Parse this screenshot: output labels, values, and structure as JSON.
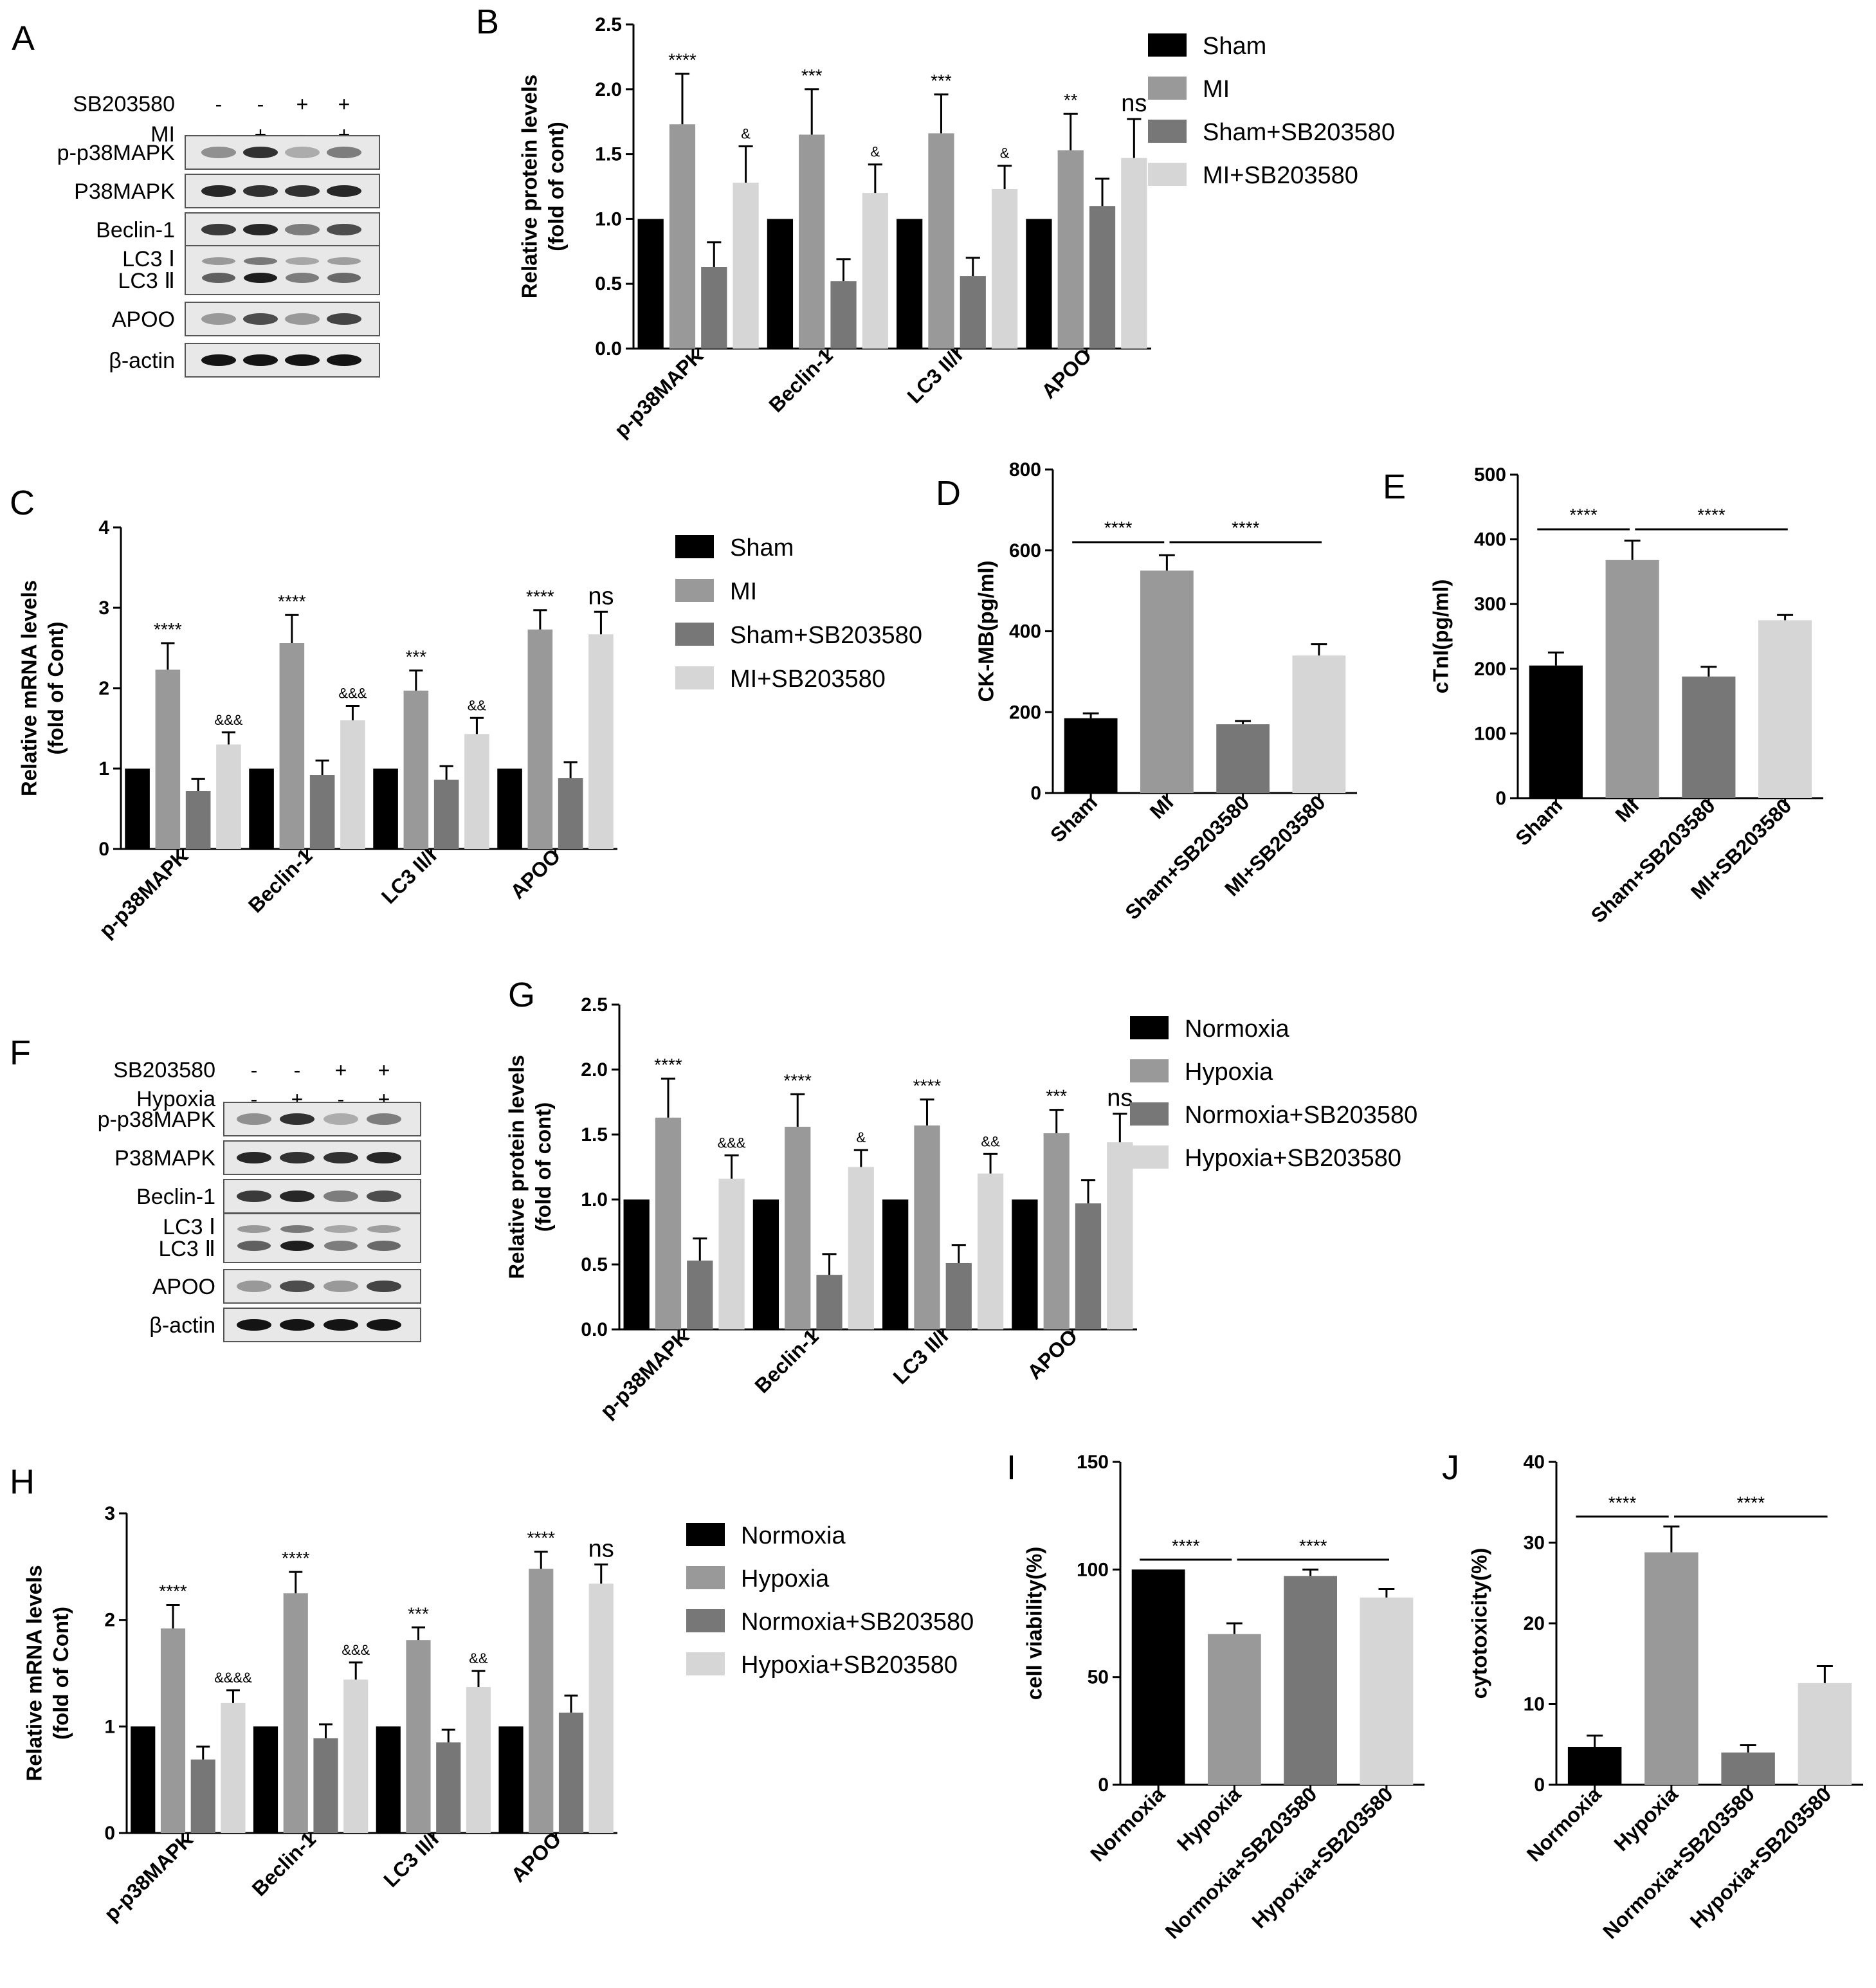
{
  "figure": {
    "panel_letters": [
      "A",
      "B",
      "C",
      "D",
      "E",
      "F",
      "G",
      "H",
      "I",
      "J"
    ]
  },
  "colors": {
    "c1": "#000000",
    "c2": "#999999",
    "c3": "#777777",
    "c4": "#d6d6d6",
    "error_bar": "#000000"
  },
  "blots": [
    {
      "letter": "A",
      "treatments": [
        {
          "label": "SB203580",
          "signs": [
            "-",
            "-",
            "+",
            "+"
          ]
        },
        {
          "label": "MI",
          "signs": [
            "-",
            "+",
            "-",
            "+"
          ]
        }
      ],
      "rows": [
        {
          "label": "p-p38MAPK"
        },
        {
          "label": "P38MAPK"
        },
        {
          "label": "Beclin-1"
        },
        {
          "label": "LC3 Ⅰ",
          "label2": "LC3 Ⅱ"
        },
        {
          "label": "APOO"
        },
        {
          "label": "β-actin"
        }
      ]
    },
    {
      "letter": "F",
      "treatments": [
        {
          "label": "SB203580",
          "signs": [
            "-",
            "-",
            "+",
            "+"
          ]
        },
        {
          "label": "Hypoxia",
          "signs": [
            "-",
            "+",
            "-",
            "+"
          ]
        }
      ],
      "rows": [
        {
          "label": "p-p38MAPK"
        },
        {
          "label": "P38MAPK"
        },
        {
          "label": "Beclin-1"
        },
        {
          "label": "LC3 Ⅰ",
          "label2": "LC3 Ⅱ"
        },
        {
          "label": "APOO"
        },
        {
          "label": "β-actin"
        }
      ]
    }
  ],
  "chart_data": [
    {
      "letter": "B",
      "type": "bar",
      "ylabel": "Relative protein levels\n(fold of cont)",
      "ylim": [
        0,
        2.5
      ],
      "yticks": [
        "0.0",
        "0.5",
        "1.0",
        "1.5",
        "2.0",
        "2.5"
      ],
      "categories": [
        "p-p38MAPK",
        "Beclin-1",
        "LC3 II/I",
        "APOO"
      ],
      "legend": [
        "Sham",
        "MI",
        "Sham+SB203580",
        "MI+SB203580"
      ],
      "series": [
        {
          "name": "Sham",
          "values": [
            1.0,
            1.0,
            1.0,
            1.0
          ],
          "errors": [
            0,
            0,
            0,
            0
          ],
          "labels": [
            "",
            "",
            "",
            ""
          ]
        },
        {
          "name": "MI",
          "values": [
            1.73,
            1.65,
            1.66,
            1.53
          ],
          "errors": [
            0.39,
            0.35,
            0.3,
            0.28
          ],
          "labels": [
            "****",
            "***",
            "***",
            "**"
          ]
        },
        {
          "name": "Sham+SB203580",
          "values": [
            0.63,
            0.52,
            0.56,
            1.1
          ],
          "errors": [
            0.19,
            0.17,
            0.14,
            0.21
          ],
          "labels": [
            "",
            "",
            "",
            ""
          ]
        },
        {
          "name": "MI+SB203580",
          "values": [
            1.28,
            1.2,
            1.23,
            1.47
          ],
          "errors": [
            0.28,
            0.22,
            0.18,
            0.3
          ],
          "labels": [
            "&",
            "&",
            "&",
            "ns"
          ]
        }
      ]
    },
    {
      "letter": "C",
      "type": "bar",
      "ylabel": "Relative mRNA  levels\n(fold of Cont)",
      "ylim": [
        0,
        4
      ],
      "yticks": [
        "0",
        "1",
        "2",
        "3",
        "4"
      ],
      "categories": [
        "p-p38MAPK",
        "Beclin-1",
        "LC3 II/I",
        "APOO"
      ],
      "legend": [
        "Sham",
        "MI",
        "Sham+SB203580",
        "MI+SB203580"
      ],
      "series": [
        {
          "name": "Sham",
          "values": [
            1.0,
            1.0,
            1.0,
            1.0
          ],
          "errors": [
            0,
            0,
            0,
            0
          ],
          "labels": [
            "",
            "",
            "",
            ""
          ]
        },
        {
          "name": "MI",
          "values": [
            2.23,
            2.56,
            1.97,
            2.73
          ],
          "errors": [
            0.33,
            0.35,
            0.25,
            0.24
          ],
          "labels": [
            "****",
            "****",
            "***",
            "****"
          ]
        },
        {
          "name": "Sham+SB203580",
          "values": [
            0.72,
            0.92,
            0.86,
            0.88
          ],
          "errors": [
            0.15,
            0.18,
            0.17,
            0.2
          ],
          "labels": [
            "",
            "",
            "",
            ""
          ]
        },
        {
          "name": "MI+SB203580",
          "values": [
            1.3,
            1.6,
            1.43,
            2.67
          ],
          "errors": [
            0.15,
            0.18,
            0.2,
            0.28
          ],
          "labels": [
            "&&&",
            "&&&",
            "&&",
            "ns"
          ]
        }
      ]
    },
    {
      "letter": "D",
      "type": "bar",
      "ylabel": "CK-MB(pg/ml)",
      "ylim": [
        0,
        800
      ],
      "yticks": [
        "0",
        "200",
        "400",
        "600",
        "800"
      ],
      "categories": [
        "Sham",
        "MI",
        "Sham+SB203580",
        "MI+SB203580"
      ],
      "values": [
        185,
        550,
        170,
        340
      ],
      "errors": [
        12,
        38,
        8,
        28
      ],
      "significance": [
        {
          "from": 0,
          "to": 1,
          "label": "****"
        },
        {
          "from": 1,
          "to": 3,
          "label": "****"
        }
      ]
    },
    {
      "letter": "E",
      "type": "bar",
      "ylabel": "cTnI(pg/ml)",
      "ylim": [
        0,
        500
      ],
      "yticks": [
        "0",
        "100",
        "200",
        "300",
        "400",
        "500"
      ],
      "categories": [
        "Sham",
        "MI",
        "Sham+SB203580",
        "MI+SB203580"
      ],
      "values": [
        205,
        368,
        188,
        275
      ],
      "errors": [
        20,
        30,
        15,
        8
      ],
      "significance": [
        {
          "from": 0,
          "to": 1,
          "label": "****"
        },
        {
          "from": 1,
          "to": 3,
          "label": "****"
        }
      ]
    },
    {
      "letter": "G",
      "type": "bar",
      "ylabel": "Relative protein levels\n(fold of cont)",
      "ylim": [
        0,
        2.5
      ],
      "yticks": [
        "0.0",
        "0.5",
        "1.0",
        "1.5",
        "2.0",
        "2.5"
      ],
      "categories": [
        "p-p38MAPK",
        "Beclin-1",
        "LC3 II/I",
        "APOO"
      ],
      "legend": [
        "Normoxia",
        "Hypoxia",
        "Normoxia+SB203580",
        "Hypoxia+SB203580"
      ],
      "series": [
        {
          "name": "Normoxia",
          "values": [
            1.0,
            1.0,
            1.0,
            1.0
          ],
          "errors": [
            0,
            0,
            0,
            0
          ],
          "labels": [
            "",
            "",
            "",
            ""
          ]
        },
        {
          "name": "Hypoxia",
          "values": [
            1.63,
            1.56,
            1.57,
            1.51
          ],
          "errors": [
            0.3,
            0.25,
            0.2,
            0.18
          ],
          "labels": [
            "****",
            "****",
            "****",
            "***"
          ]
        },
        {
          "name": "Normoxia+SB203580",
          "values": [
            0.53,
            0.42,
            0.51,
            0.97
          ],
          "errors": [
            0.17,
            0.16,
            0.14,
            0.18
          ],
          "labels": [
            "",
            "",
            "",
            ""
          ]
        },
        {
          "name": "Hypoxia+SB203580",
          "values": [
            1.16,
            1.25,
            1.2,
            1.44
          ],
          "errors": [
            0.18,
            0.13,
            0.15,
            0.22
          ],
          "labels": [
            "&&&",
            "&",
            "&&",
            "ns"
          ]
        }
      ]
    },
    {
      "letter": "H",
      "type": "bar",
      "ylabel": "Relative mRNA  levels\n(fold of Cont)",
      "ylim": [
        0,
        3
      ],
      "yticks": [
        "0",
        "1",
        "2",
        "3"
      ],
      "categories": [
        "p-p38MAPK",
        "Beclin-1",
        "LC3 II/I",
        "APOO"
      ],
      "legend": [
        "Normoxia",
        "Hypoxia",
        "Normoxia+SB203580",
        "Hypoxia+SB203580"
      ],
      "series": [
        {
          "name": "Normoxia",
          "values": [
            1.0,
            1.0,
            1.0,
            1.0
          ],
          "errors": [
            0,
            0,
            0,
            0
          ],
          "labels": [
            "",
            "",
            "",
            ""
          ]
        },
        {
          "name": "Hypoxia",
          "values": [
            1.92,
            2.25,
            1.81,
            2.48
          ],
          "errors": [
            0.22,
            0.2,
            0.12,
            0.16
          ],
          "labels": [
            "****",
            "****",
            "***",
            "****"
          ]
        },
        {
          "name": "Normoxia+SB203580",
          "values": [
            0.69,
            0.89,
            0.85,
            1.13
          ],
          "errors": [
            0.12,
            0.13,
            0.12,
            0.16
          ],
          "labels": [
            "",
            "",
            "",
            ""
          ]
        },
        {
          "name": "Hypoxia+SB203580",
          "values": [
            1.22,
            1.44,
            1.37,
            2.34
          ],
          "errors": [
            0.12,
            0.16,
            0.15,
            0.18
          ],
          "labels": [
            "&&&&",
            "&&&",
            "&&",
            "ns"
          ]
        }
      ]
    },
    {
      "letter": "I",
      "type": "bar",
      "ylabel": "cell viability(%)",
      "ylim": [
        0,
        150
      ],
      "yticks": [
        "0",
        "50",
        "100",
        "150"
      ],
      "categories": [
        "Normoxia",
        "Hypoxia",
        "Normoxia+SB203580",
        "Hypoxia+SB203580"
      ],
      "values": [
        100,
        70,
        97,
        87
      ],
      "errors": [
        0,
        5,
        3,
        4
      ],
      "significance": [
        {
          "from": 0,
          "to": 1,
          "label": "****"
        },
        {
          "from": 1,
          "to": 3,
          "label": "****"
        }
      ]
    },
    {
      "letter": "J",
      "type": "bar",
      "ylabel": "cytotoxicity(%)",
      "ylim": [
        0,
        40
      ],
      "yticks": [
        "0",
        "10",
        "20",
        "30",
        "40"
      ],
      "categories": [
        "Normoxia",
        "Hypoxia",
        "Normoxia+SB203580",
        "Hypoxia+SB203580"
      ],
      "values": [
        4.7,
        28.8,
        4.0,
        12.6
      ],
      "errors": [
        1.4,
        3.2,
        0.9,
        2.1
      ],
      "significance": [
        {
          "from": 0,
          "to": 1,
          "label": "****"
        },
        {
          "from": 1,
          "to": 3,
          "label": "****"
        }
      ]
    }
  ]
}
